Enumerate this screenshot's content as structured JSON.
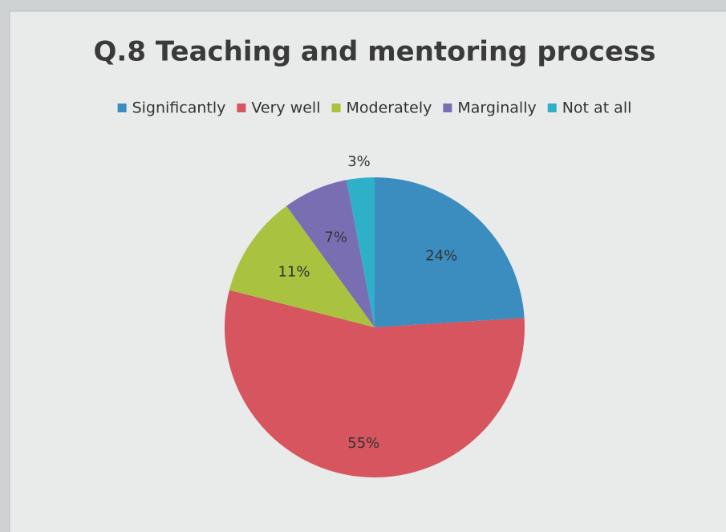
{
  "chart_data": {
    "type": "pie",
    "title": "Q.8 Teaching and mentoring process",
    "categories": [
      "Significantly",
      "Very well",
      "Moderately",
      "Marginally",
      "Not at all"
    ],
    "values": [
      24,
      55,
      11,
      7,
      3
    ],
    "value_labels": [
      "24%",
      "55%",
      "11%",
      "7%",
      "3%"
    ],
    "colors": [
      "#3b8dbf",
      "#d6555f",
      "#a9c23f",
      "#7a6eb3",
      "#2fb0c9"
    ],
    "legend": "top"
  }
}
